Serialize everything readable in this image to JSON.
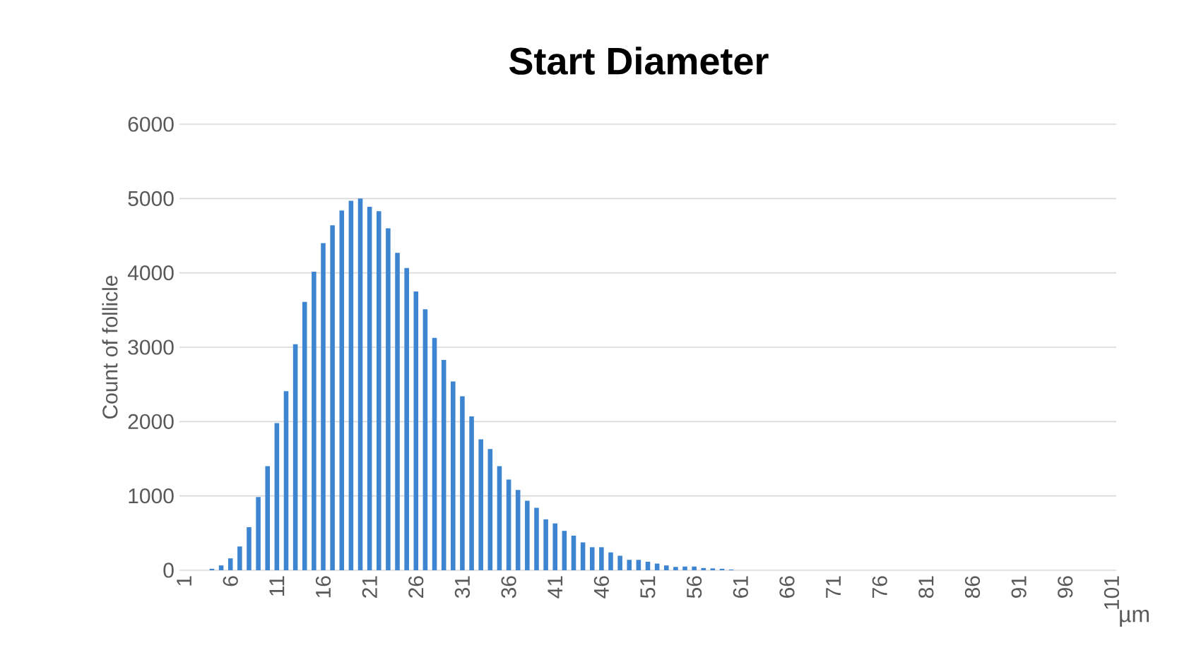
{
  "chart_data": {
    "type": "bar",
    "title": "Start Diameter",
    "xlabel": "µm",
    "ylabel": "Count of follicle",
    "categories": [
      "1",
      null,
      null,
      null,
      null,
      "6",
      null,
      null,
      null,
      null,
      "11",
      null,
      null,
      null,
      null,
      "16",
      null,
      null,
      null,
      null,
      "21",
      null,
      null,
      null,
      null,
      "26",
      null,
      null,
      null,
      null,
      "31",
      null,
      null,
      null,
      null,
      "36",
      null,
      null,
      null,
      null,
      "41",
      null,
      null,
      null,
      null,
      "46",
      null,
      null,
      null,
      null,
      "51",
      null,
      null,
      null,
      null,
      "56",
      null,
      null,
      null,
      null,
      "61",
      null,
      null,
      null,
      null,
      "66",
      null,
      null,
      null,
      null,
      "71",
      null,
      null,
      null,
      null,
      "76",
      null,
      null,
      null,
      null,
      "81",
      null,
      null,
      null,
      null,
      "86",
      null,
      null,
      null,
      null,
      "91",
      null,
      null,
      null,
      null,
      "96",
      null,
      null,
      null,
      null,
      "101"
    ],
    "values": [
      0,
      0,
      0,
      20,
      65,
      160,
      320,
      580,
      985,
      1400,
      1980,
      2410,
      3040,
      3610,
      4015,
      4400,
      4640,
      4840,
      4970,
      5000,
      4890,
      4830,
      4600,
      4270,
      4065,
      3750,
      3510,
      3125,
      2830,
      2540,
      2340,
      2070,
      1760,
      1630,
      1400,
      1220,
      1080,
      935,
      840,
      685,
      630,
      530,
      465,
      375,
      310,
      310,
      240,
      195,
      140,
      140,
      115,
      90,
      65,
      45,
      50,
      50,
      30,
      25,
      20,
      10,
      null,
      0,
      0,
      0,
      0,
      0,
      0,
      0,
      0,
      0,
      0,
      0,
      0,
      0,
      0,
      0,
      0,
      0,
      0,
      0,
      0,
      0,
      0,
      0,
      0,
      0,
      0,
      0,
      0,
      0,
      0,
      0,
      0,
      0,
      0,
      0,
      0,
      0,
      0,
      0,
      0
    ],
    "color": "#3d85d0",
    "ylim": [
      0,
      6000
    ],
    "yticks": [
      0,
      1000,
      2000,
      3000,
      4000,
      5000,
      6000
    ],
    "grid": "y"
  }
}
